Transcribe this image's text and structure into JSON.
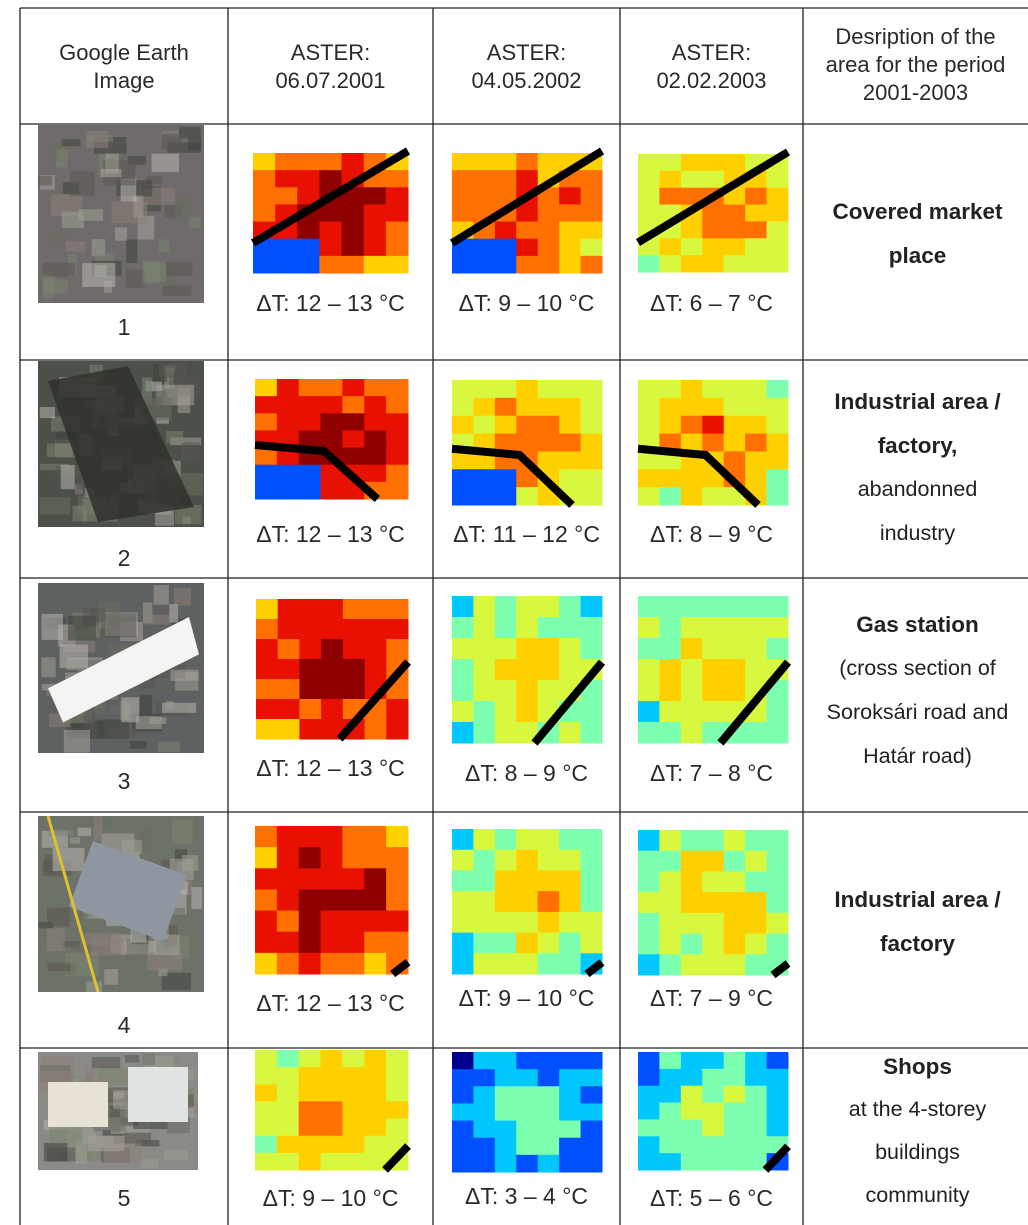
{
  "headers": [
    [
      "Google Earth",
      "Image"
    ],
    [
      "ASTER:",
      "06.07.2001"
    ],
    [
      "ASTER:",
      "04.05.2002"
    ],
    [
      "ASTER:",
      "02.02.2003"
    ],
    [
      "Desription of the",
      "area for the period",
      "2001-2003"
    ]
  ],
  "rows": [
    {
      "number": "1",
      "dt": [
        "ΔT: 12 – 13 °C",
        "ΔT: 9 – 10 °C",
        "ΔT: 6 – 7 °C"
      ],
      "desc": [
        {
          "t": "Covered market",
          "b": true
        },
        {
          "t": "place",
          "b": true
        }
      ]
    },
    {
      "number": "2",
      "dt": [
        "ΔT: 12 – 13 °C",
        "ΔT: 11 – 12 °C",
        "ΔT: 8 – 9 °C"
      ],
      "desc": [
        {
          "t": "Industrial area /",
          "b": true
        },
        {
          "t": "factory,",
          "b": true
        },
        {
          "t": "abandonned",
          "b": false
        },
        {
          "t": "industry",
          "b": false
        }
      ]
    },
    {
      "number": "3",
      "dt": [
        "ΔT: 12 – 13 °C",
        "ΔT: 8 – 9 °C",
        "ΔT: 7 – 8 °C"
      ],
      "desc": [
        {
          "t": "Gas station",
          "b": true
        },
        {
          "t": "(cross section of",
          "b": false
        },
        {
          "t": "Soroksári road and",
          "b": false
        },
        {
          "t": "Határ road)",
          "b": false
        }
      ]
    },
    {
      "number": "4",
      "dt": [
        "ΔT: 12 – 13 °C",
        "ΔT: 9 – 10 °C",
        "ΔT: 7 – 9 °C"
      ],
      "desc": [
        {
          "t": "Industrial area /",
          "b": true
        },
        {
          "t": "factory",
          "b": true
        }
      ]
    },
    {
      "number": "5",
      "dt": [
        "ΔT: 9 – 10 °C",
        "ΔT: 3 – 4 °C",
        "ΔT: 5 – 6 °C"
      ],
      "desc": [
        {
          "t": "Shops",
          "b": true
        },
        {
          "t": "at the 4-storey",
          "b": false
        },
        {
          "t": "buildings",
          "b": false
        },
        {
          "t": "community",
          "b": false
        }
      ]
    }
  ],
  "colors": {
    "grid": "#222222",
    "heat_scale": [
      "#00008f",
      "#0050ff",
      "#00c8ff",
      "#7dffb0",
      "#d8f840",
      "#ffd000",
      "#ff7000",
      "#e81000",
      "#8f0000"
    ],
    "road": "#000000"
  },
  "heatmap_levels": [
    [
      "66666666577764",
      "55666667777766",
      "55566667778777",
      "13455677887766",
      "11234566776665",
      "11123556555555",
      "11112334444444"
    ],
    [
      "32333444443322",
      "32334445554332",
      "22334455554432",
      "11234445544322",
      "11123344443322",
      "10112334443322",
      "10112233333322"
    ],
    [
      "44444444444433",
      "44444445544433",
      "44444455554433",
      "34444445554433",
      "33444444444433",
      "33344444444333",
      "33333444444333"
    ]
  ]
}
